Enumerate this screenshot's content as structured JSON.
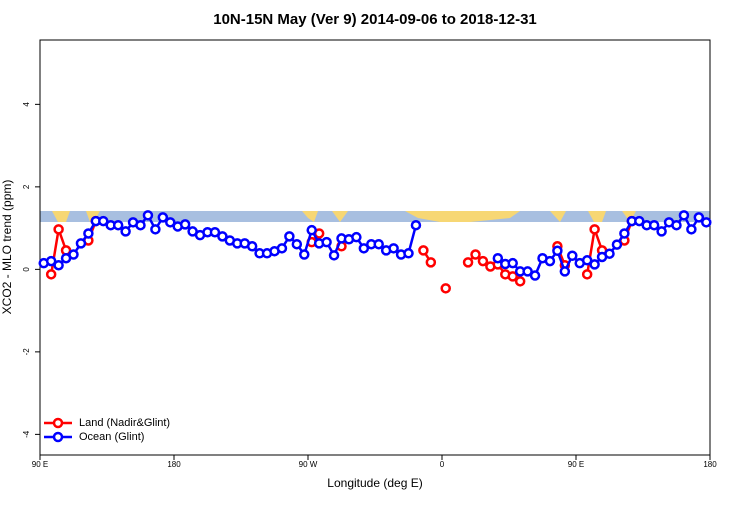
{
  "chart_data": {
    "type": "line",
    "title": "10N-15N May (Ver 9)   2014-09-06 to 2018-12-31",
    "x_label": "Longitude (deg E)",
    "y_label": "XCO2 - MLO trend (ppm)",
    "x": [
      92.5,
      97.5,
      102.5,
      107.5,
      112.5,
      117.5,
      122.5,
      127.5,
      132.5,
      137.5,
      142.5,
      147.5,
      152.5,
      157.5,
      162.5,
      167.5,
      172.5,
      177.5,
      182.5,
      187.5,
      192.5,
      197.5,
      202.5,
      207.5,
      212.5,
      217.5,
      222.5,
      227.5,
      232.5,
      237.5,
      242.5,
      247.5,
      252.5,
      257.5,
      262.5,
      267.5,
      272.5,
      277.5,
      282.5,
      287.5,
      292.5,
      297.5,
      302.5,
      307.5,
      312.5,
      317.5,
      322.5,
      327.5,
      332.5,
      337.5,
      342.5,
      347.5,
      352.5,
      357.5,
      362.5,
      367.5,
      372.5,
      377.5,
      382.5,
      387.5,
      392.5,
      397.5,
      402.5,
      407.5,
      412.5,
      417.5,
      422.5,
      427.5,
      432.5,
      437.5,
      442.5,
      447.5,
      452.5,
      457.5,
      462.5,
      467.5,
      472.5,
      477.5,
      482.5,
      487.5,
      492.5,
      497.5,
      502.5,
      507.5,
      512.5,
      517.5,
      522.5,
      527.5,
      532.5,
      537.5
    ],
    "series": [
      {
        "name": "Land (Nadir&Glint)",
        "color": "#ff0000",
        "values": [
          null,
          -0.12,
          0.97,
          0.46,
          null,
          null,
          0.7,
          1.17,
          null,
          null,
          null,
          null,
          null,
          null,
          null,
          null,
          null,
          null,
          null,
          null,
          null,
          null,
          null,
          null,
          null,
          null,
          null,
          null,
          null,
          null,
          null,
          null,
          null,
          null,
          null,
          null,
          0.66,
          0.87,
          null,
          null,
          0.56,
          null,
          null,
          null,
          null,
          null,
          null,
          null,
          null,
          null,
          null,
          0.46,
          0.17,
          null,
          -0.46,
          null,
          null,
          0.17,
          0.36,
          0.2,
          0.07,
          0.12,
          -0.12,
          -0.17,
          -0.29,
          null,
          null,
          null,
          null,
          0.56,
          0.1,
          null,
          null,
          -0.12,
          0.97,
          0.46,
          null,
          null,
          0.7,
          1.17,
          null,
          null,
          null,
          null,
          null,
          null,
          null,
          null,
          null,
          null
        ]
      },
      {
        "name": "Ocean (Glint)",
        "color": "#0000ff",
        "values": [
          0.15,
          0.2,
          0.1,
          0.27,
          0.36,
          0.63,
          0.87,
          1.17,
          1.17,
          1.07,
          1.07,
          0.92,
          1.14,
          1.07,
          1.31,
          0.97,
          1.26,
          1.14,
          1.04,
          1.09,
          0.92,
          0.83,
          0.9,
          0.9,
          0.8,
          0.7,
          0.63,
          0.63,
          0.56,
          0.39,
          0.39,
          0.44,
          0.51,
          0.8,
          0.61,
          0.36,
          0.95,
          0.63,
          0.66,
          0.34,
          0.75,
          0.73,
          0.78,
          0.51,
          0.61,
          0.61,
          0.46,
          0.51,
          0.36,
          0.39,
          1.07,
          null,
          null,
          null,
          null,
          null,
          null,
          null,
          null,
          null,
          null,
          0.27,
          0.13,
          0.15,
          -0.05,
          -0.05,
          -0.15,
          0.27,
          0.2,
          0.45,
          -0.05,
          0.33,
          0.15,
          0.22,
          0.12,
          0.3,
          0.38,
          0.6,
          0.87,
          1.17,
          1.17,
          1.07,
          1.07,
          0.92,
          1.14,
          1.07,
          1.31,
          0.97,
          1.26,
          1.14
        ]
      }
    ],
    "xlim": [
      90,
      540
    ],
    "ylim": [
      -4.5,
      5.56
    ],
    "xticks": [
      {
        "value": 90,
        "label": "90 E"
      },
      180,
      {
        "value": 270,
        "label": "90 W"
      },
      {
        "value": 360,
        "label": "0"
      },
      {
        "value": 450,
        "label": "90 E"
      },
      {
        "value": 540,
        "label": "180"
      }
    ],
    "yticks": [
      -4,
      -2,
      0,
      2,
      4
    ],
    "legend": "bottom-left"
  }
}
